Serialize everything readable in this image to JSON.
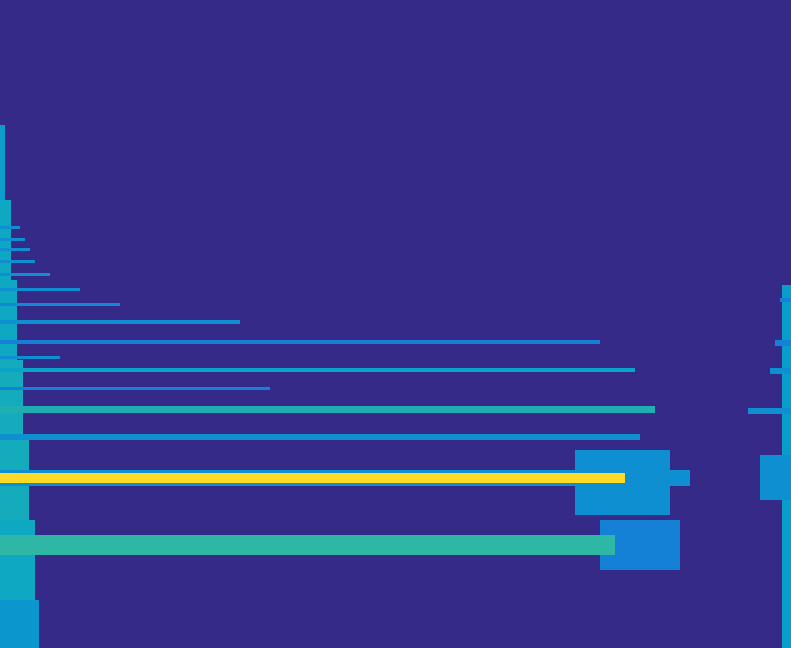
{
  "chart_data": {
    "type": "heatmap",
    "xlim": [
      0,
      791
    ],
    "ylim": [
      0,
      648
    ],
    "tick_labels": false,
    "clim": [
      0,
      1
    ],
    "cells": [
      [
        0,
        5,
        448,
        523,
        0.35
      ],
      [
        0,
        11,
        368,
        448,
        0.4
      ],
      [
        0,
        17,
        288,
        368,
        0.4
      ],
      [
        0,
        23,
        208,
        288,
        0.42
      ],
      [
        0,
        29,
        128,
        208,
        0.42
      ],
      [
        0,
        35,
        48,
        128,
        0.4
      ],
      [
        0,
        39,
        0,
        48,
        0.33
      ],
      [
        782,
        791,
        0,
        363,
        0.35
      ],
      [
        760,
        791,
        148,
        193,
        0.3
      ],
      [
        600,
        680,
        78,
        128,
        0.25
      ],
      [
        575,
        670,
        133,
        198,
        0.3
      ],
      [
        0,
        615,
        93,
        113,
        0.5
      ],
      [
        0,
        690,
        162,
        178,
        0.3
      ],
      [
        0,
        625,
        165,
        175,
        0.92
      ],
      [
        0,
        640,
        208,
        214,
        0.3
      ],
      [
        0,
        655,
        235,
        242,
        0.45
      ],
      [
        0,
        270,
        258,
        261,
        0.25
      ],
      [
        0,
        635,
        276,
        280,
        0.38
      ],
      [
        0,
        60,
        289,
        292,
        0.3
      ],
      [
        0,
        600,
        304,
        308,
        0.25
      ],
      [
        0,
        240,
        324,
        328,
        0.3
      ],
      [
        0,
        120,
        342,
        345,
        0.28
      ],
      [
        0,
        80,
        357,
        360,
        0.3
      ],
      [
        0,
        50,
        372,
        375,
        0.3
      ],
      [
        0,
        35,
        385,
        388,
        0.3
      ],
      [
        0,
        30,
        397,
        400,
        0.3
      ],
      [
        0,
        25,
        407,
        410,
        0.3
      ],
      [
        0,
        20,
        419,
        422,
        0.3
      ],
      [
        748,
        791,
        234,
        240,
        0.3
      ],
      [
        770,
        791,
        274,
        280,
        0.3
      ],
      [
        775,
        791,
        302,
        308,
        0.25
      ],
      [
        780,
        791,
        346,
        350,
        0.25
      ]
    ]
  }
}
